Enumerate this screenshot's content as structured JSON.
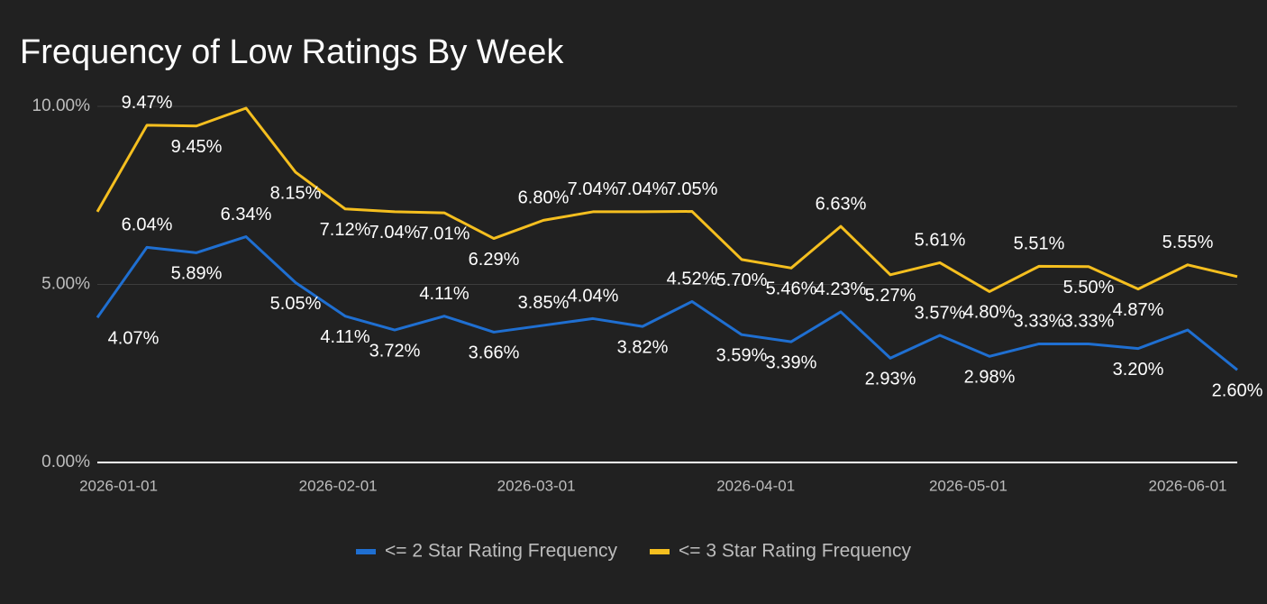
{
  "chart_data": {
    "type": "line",
    "title": "Frequency of Low Ratings By Week",
    "x": [
      "2025-12-29",
      "2026-01-05",
      "2026-01-12",
      "2026-01-19",
      "2026-01-26",
      "2026-02-02",
      "2026-02-09",
      "2026-02-16",
      "2026-02-23",
      "2026-03-02",
      "2026-03-09",
      "2026-03-16",
      "2026-03-23",
      "2026-03-30",
      "2026-04-06",
      "2026-04-13",
      "2026-04-20",
      "2026-04-27",
      "2026-05-04",
      "2026-05-11",
      "2026-05-18",
      "2026-05-25",
      "2026-06-01",
      "2026-06-08"
    ],
    "xlim": [
      "2025-12-29",
      "2026-06-08"
    ],
    "xticks": [
      "2026-01-01",
      "2026-02-01",
      "2026-03-01",
      "2026-04-01",
      "2026-05-01",
      "2026-06-01"
    ],
    "ylim": [
      0,
      10
    ],
    "yticks": [
      {
        "value": 0,
        "label": "0.00%"
      },
      {
        "value": 5,
        "label": "5.00%"
      },
      {
        "value": 10,
        "label": "10.00%"
      }
    ],
    "grid": true,
    "legend": "bottom",
    "series": [
      {
        "name": "<= 2 Star Rating Frequency",
        "color": "#1f6fd1",
        "values": [
          4.07,
          6.04,
          5.89,
          6.34,
          5.05,
          4.11,
          3.72,
          4.11,
          3.66,
          3.85,
          4.04,
          3.82,
          4.52,
          3.59,
          3.39,
          4.23,
          2.93,
          3.57,
          2.98,
          3.33,
          3.33,
          3.2,
          3.72,
          2.6
        ],
        "value_labels": [
          "4.07%",
          "6.04%",
          "5.89%",
          "6.34%",
          "5.05%",
          "4.11%",
          "3.72%",
          "4.11%",
          "3.66%",
          "3.85%",
          "4.04%",
          "3.82%",
          "4.52%",
          "3.59%",
          "3.39%",
          "4.23%",
          "2.93%",
          "3.57%",
          "2.98%",
          "3.33%",
          "3.33%",
          "3.20%",
          null,
          "2.60%"
        ]
      },
      {
        "name": "<= 3 Star Rating Frequency",
        "color": "#f5bf1f",
        "values": [
          7.04,
          9.47,
          9.45,
          9.95,
          8.15,
          7.12,
          7.04,
          7.01,
          6.29,
          6.8,
          7.04,
          7.04,
          7.05,
          5.7,
          5.46,
          6.63,
          5.27,
          5.61,
          4.8,
          5.51,
          5.5,
          4.87,
          5.55,
          5.22
        ],
        "value_labels": [
          null,
          "9.47%",
          "9.45%",
          null,
          "8.15%",
          "7.12%",
          "7.04%",
          "7.01%",
          "6.29%",
          "6.80%",
          "7.04%",
          "7.04%",
          "7.05%",
          "5.70%",
          "5.46%",
          "6.63%",
          "5.27%",
          "5.61%",
          "4.80%",
          "5.51%",
          "5.50%",
          "4.87%",
          "5.55%",
          null
        ]
      }
    ]
  }
}
